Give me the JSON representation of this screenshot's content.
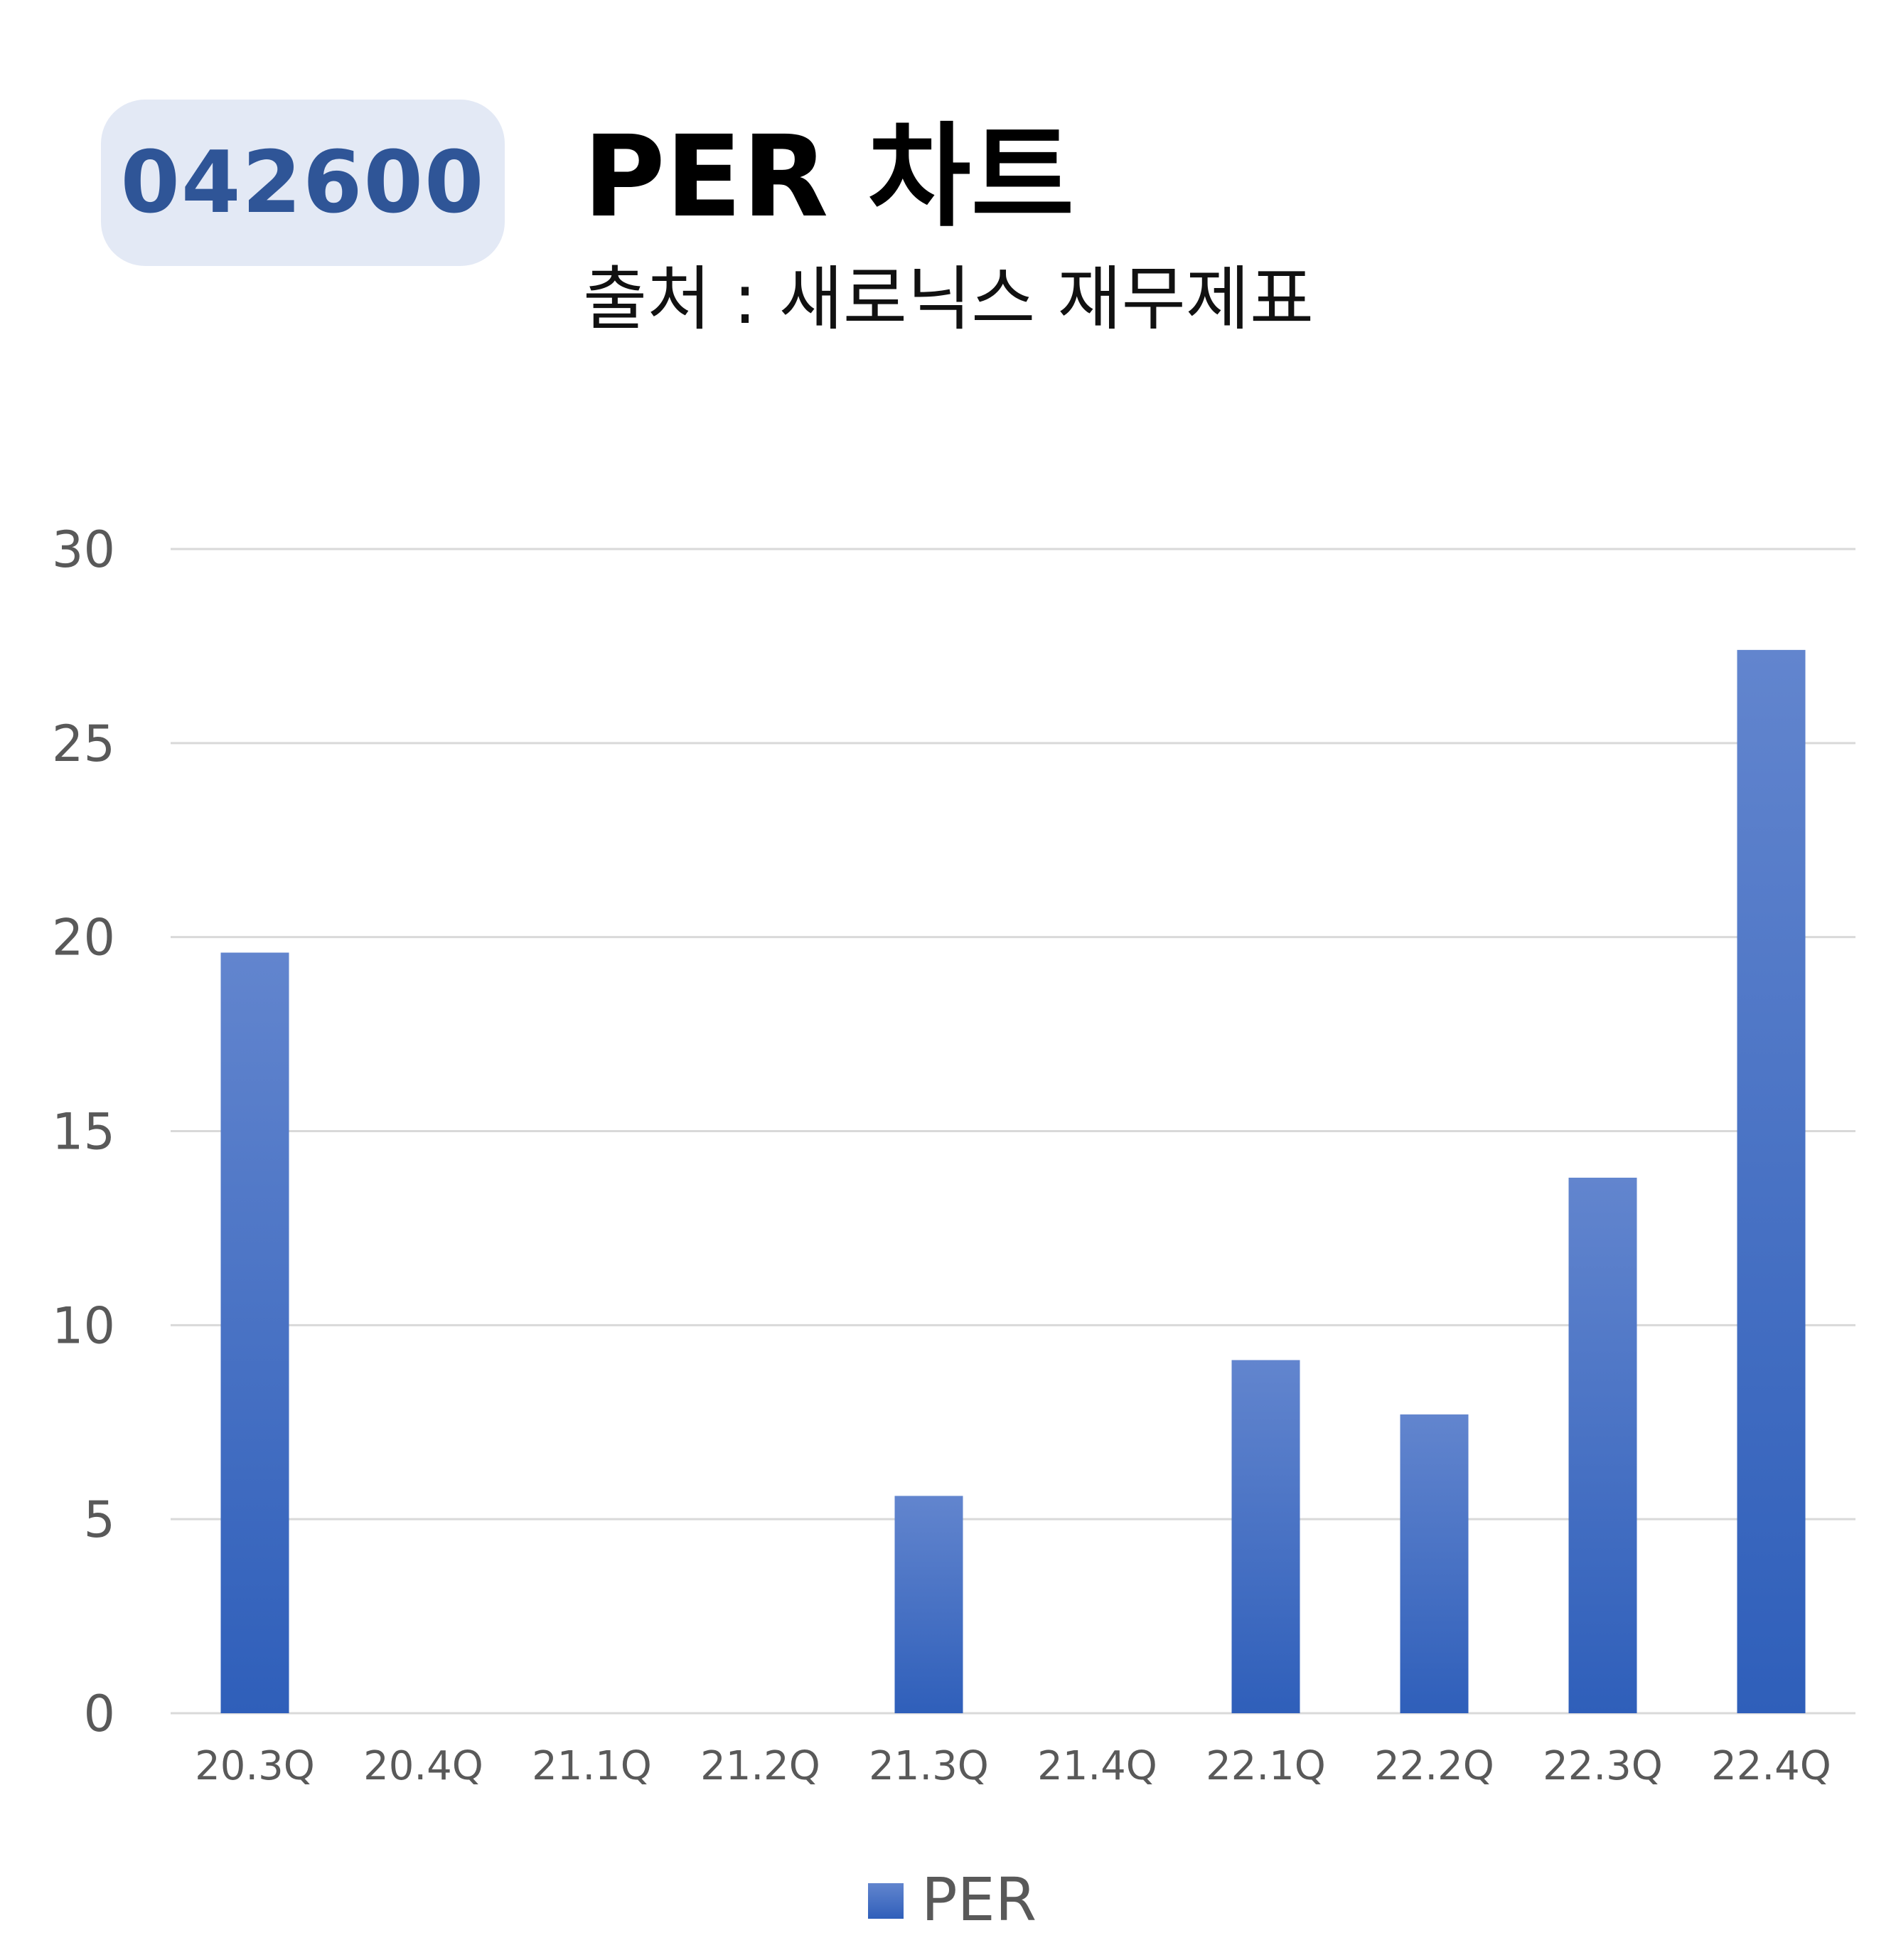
{
  "header": {
    "stock_code": "042600",
    "title": "PER 차트",
    "subtitle": "출처 : 새로닉스 재무제표"
  },
  "colors": {
    "badge_background": "#e3e9f5",
    "badge_text": "#2f5597",
    "bar_top": "#6285ce",
    "bar_bottom": "#2f5fba",
    "gridline": "#d9d9d9",
    "tick_text": "#595959"
  },
  "chart_data": {
    "type": "bar",
    "categories": [
      "20.3Q",
      "20.4Q",
      "21.1Q",
      "21.2Q",
      "21.3Q",
      "21.4Q",
      "22.1Q",
      "22.2Q",
      "22.3Q",
      "22.4Q"
    ],
    "series": [
      {
        "name": "PER",
        "values": [
          19.6,
          0,
          0,
          0,
          5.6,
          0,
          9.1,
          7.7,
          13.8,
          27.4
        ]
      }
    ],
    "yticks": [
      "0",
      "5",
      "10",
      "15",
      "20",
      "25",
      "30"
    ],
    "ylim": [
      0,
      30
    ],
    "grid": true,
    "legend_position": "bottom"
  }
}
